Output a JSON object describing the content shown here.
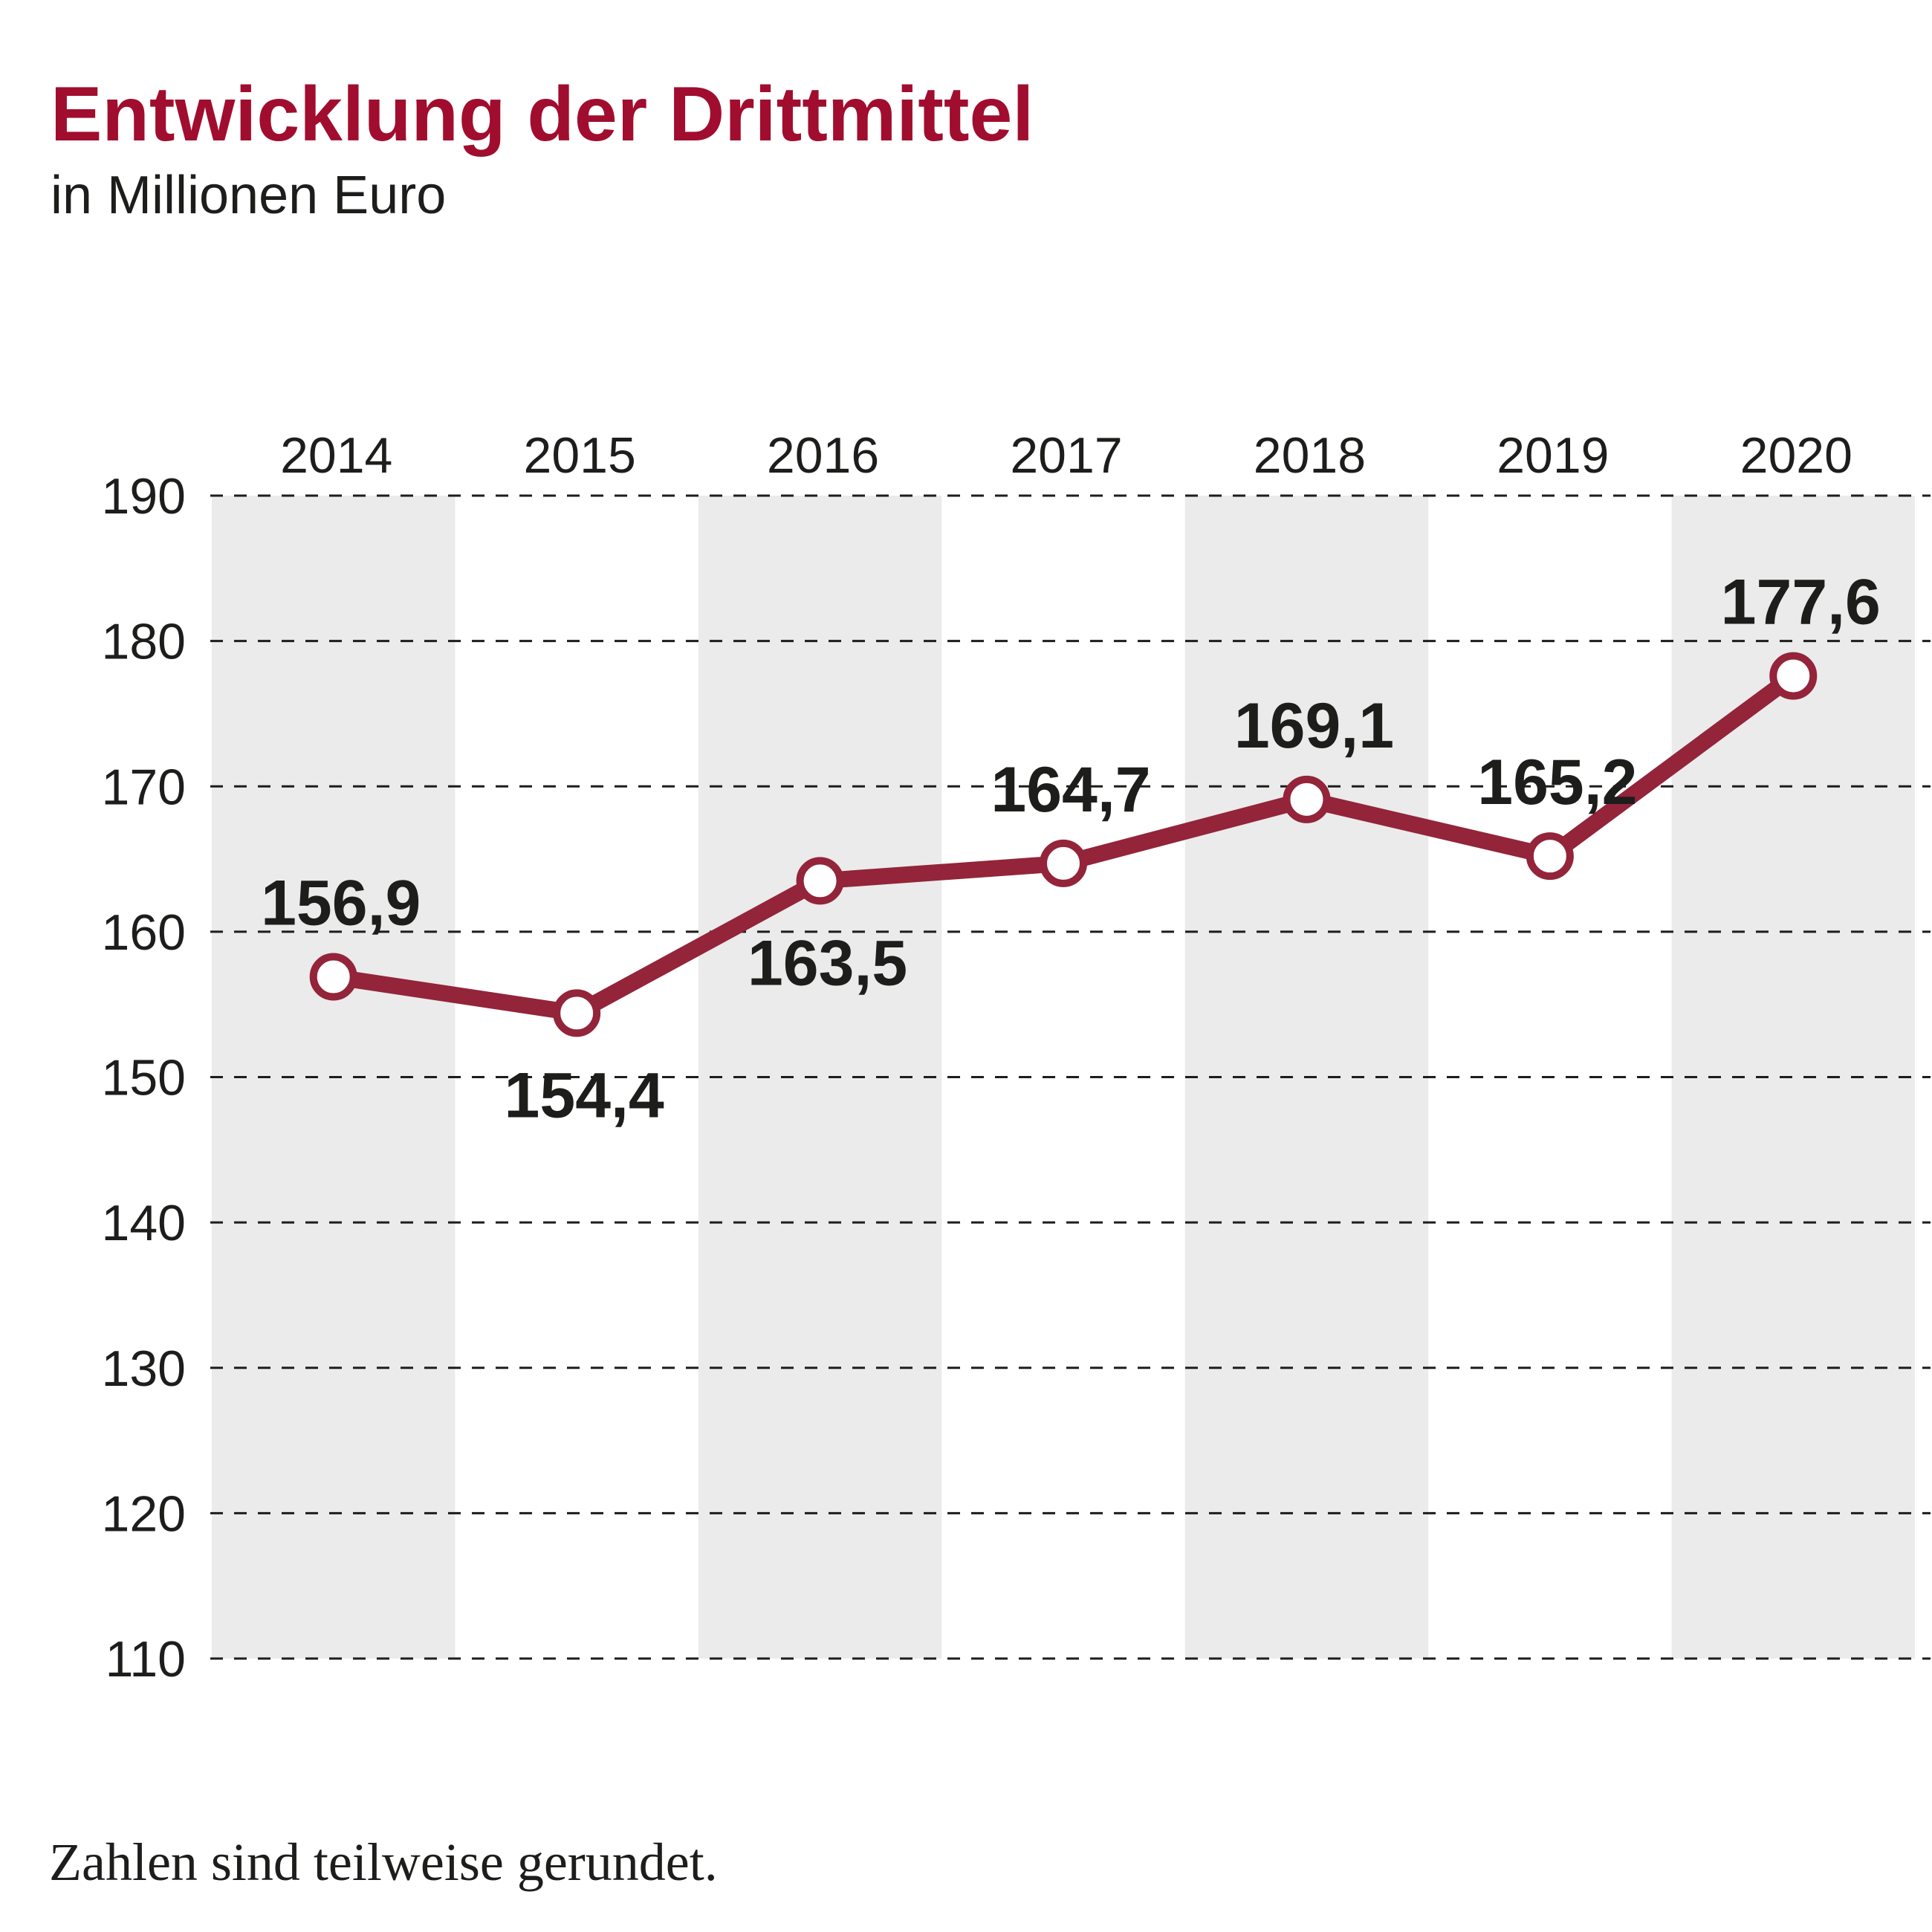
{
  "header": {
    "title": "Entwicklung der Drittmittel",
    "subtitle": "in Millionen Euro"
  },
  "footer": {
    "note": "Zahlen sind teilweise gerundet."
  },
  "colors": {
    "title": "#A10D2E",
    "line": "#93243A",
    "marker_fill": "#FFFFFF",
    "band": "#EBEBEB",
    "grid": "#1D1D1B",
    "text": "#1D1D1B"
  },
  "chart_data": {
    "type": "line",
    "title": "Entwicklung der Drittmittel",
    "subtitle": "in Millionen Euro",
    "xlabel": "",
    "ylabel": "",
    "categories": [
      "2014",
      "2015",
      "2016",
      "2017",
      "2018",
      "2019",
      "2020"
    ],
    "series": [
      {
        "name": "Drittmittel",
        "values": [
          156.9,
          154.4,
          163.5,
          164.7,
          169.1,
          165.2,
          177.6
        ],
        "labels": [
          "156,9",
          "154,4",
          "163,5",
          "164,7",
          "169,1",
          "165,2",
          "177,6"
        ],
        "label_position": [
          "above",
          "below",
          "below",
          "above",
          "above",
          "above",
          "above"
        ]
      }
    ],
    "ylim": [
      110,
      190
    ],
    "yticks": [
      110,
      120,
      130,
      140,
      150,
      160,
      170,
      180,
      190
    ],
    "ytick_labels": [
      "110",
      "120",
      "130",
      "140",
      "150",
      "160",
      "170",
      "180",
      "190"
    ],
    "xaxis_position": "top",
    "grid": "horizontal-dashed",
    "alternating_column_bands": true,
    "legend": "none",
    "note": "Zahlen sind teilweise gerundet."
  }
}
